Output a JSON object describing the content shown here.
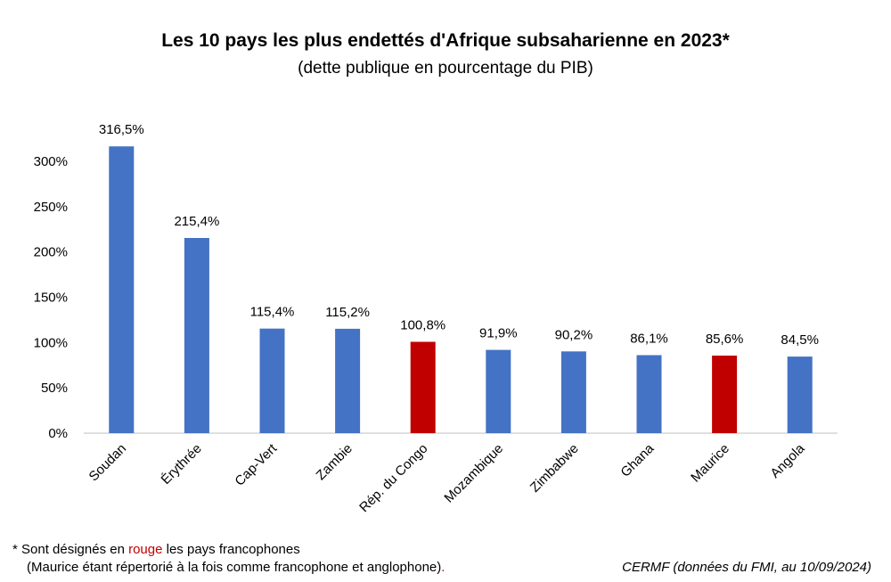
{
  "title": "Les 10 pays les plus endettés d'Afrique subsaharienne en 2023*",
  "subtitle": "(dette publique en pourcentage du PIB)",
  "footnote": {
    "prefix": "* Sont désignés en ",
    "highlight": "rouge",
    "suffix": " les pays francophones",
    "line2_main": "(Maurice étant répertorié à la fois comme francophone et anglophone)",
    "line2_end": "."
  },
  "source": "CERMF (données du FMI, au 10/09/2024)",
  "colors": {
    "default": "#4472c4",
    "francophone": "#c00000"
  },
  "chart_data": {
    "type": "bar",
    "categories": [
      "Soudan",
      "Érythrée",
      "Cap-Vert",
      "Zambie",
      "Rép. du Congo",
      "Mozambique",
      "Zimbabwe",
      "Ghana",
      "Maurice",
      "Angola"
    ],
    "values": [
      316.5,
      215.4,
      115.4,
      115.2,
      100.8,
      91.9,
      90.2,
      86.1,
      85.6,
      84.5
    ],
    "value_labels": [
      "316,5%",
      "215,4%",
      "115,4%",
      "115,2%",
      "100,8%",
      "91,9%",
      "90,2%",
      "86,1%",
      "85,6%",
      "84,5%"
    ],
    "francophone": [
      false,
      false,
      false,
      false,
      true,
      false,
      false,
      false,
      true,
      false
    ],
    "y_ticks": [
      0,
      50,
      100,
      150,
      200,
      250,
      300
    ],
    "y_tick_labels": [
      "0%",
      "50%",
      "100%",
      "150%",
      "200%",
      "250%",
      "300%"
    ],
    "ylim": [
      0,
      300
    ],
    "grid": false,
    "legend": "none"
  }
}
